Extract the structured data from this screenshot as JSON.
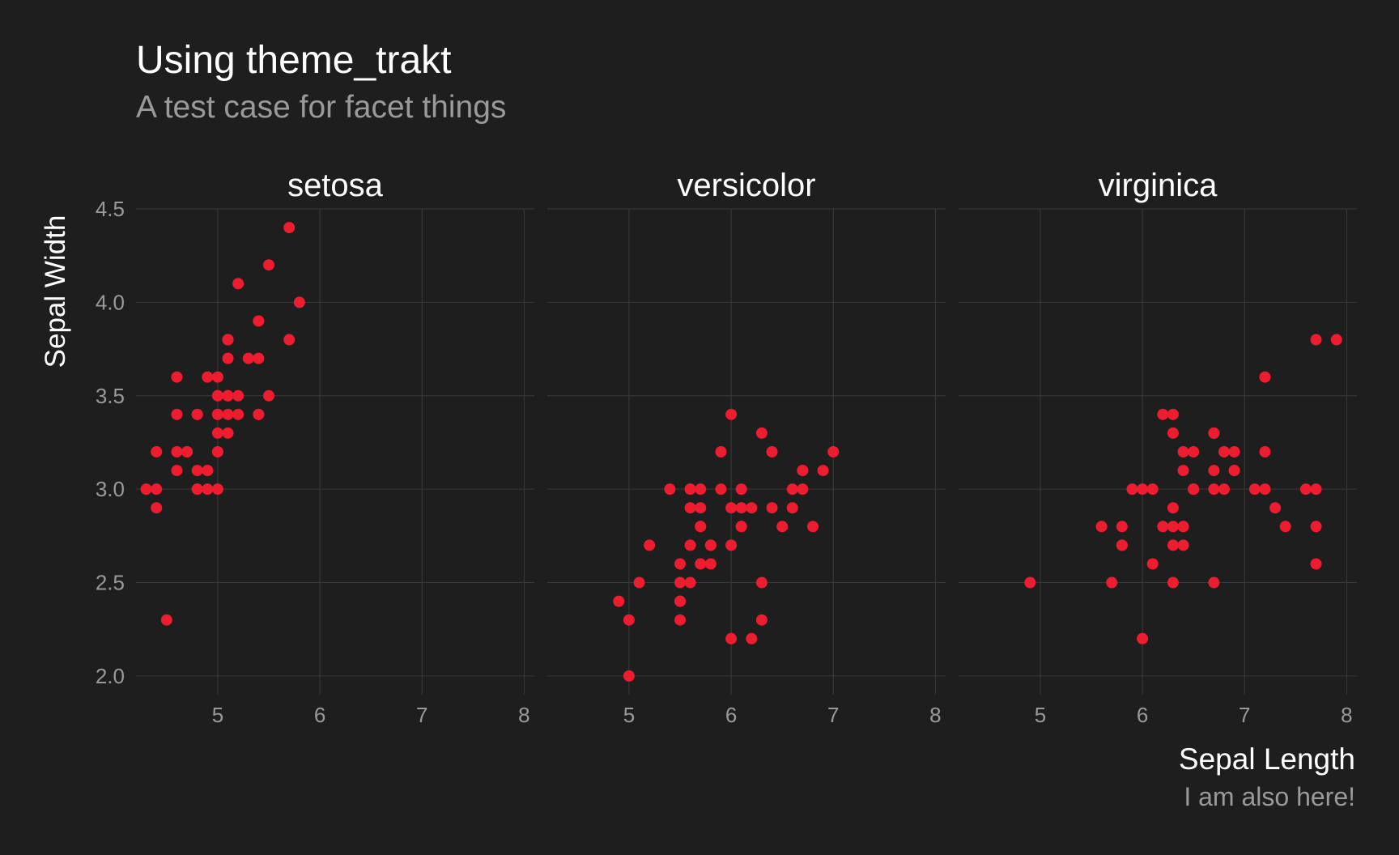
{
  "chart_data": {
    "type": "scatter",
    "title": "Using theme_trakt",
    "subtitle": "A test case for facet things",
    "xlabel": "Sepal Length",
    "ylabel": "Sepal Width",
    "caption": "I am also here!",
    "xlim": [
      4.2,
      8.1
    ],
    "ylim": [
      1.9,
      4.5
    ],
    "x_ticks": [
      "5",
      "6",
      "7",
      "8"
    ],
    "y_ticks": [
      "2.0",
      "2.5",
      "3.0",
      "3.5",
      "4.0",
      "4.5"
    ],
    "grid": true,
    "legend": "none",
    "point_color": "#ed1c2e",
    "background_color": "#1e1e1e",
    "facets": [
      {
        "label": "setosa",
        "points": [
          [
            5.1,
            3.5
          ],
          [
            4.9,
            3.0
          ],
          [
            4.7,
            3.2
          ],
          [
            4.6,
            3.1
          ],
          [
            5.0,
            3.6
          ],
          [
            5.4,
            3.9
          ],
          [
            4.6,
            3.4
          ],
          [
            5.0,
            3.4
          ],
          [
            4.4,
            2.9
          ],
          [
            4.9,
            3.1
          ],
          [
            5.4,
            3.7
          ],
          [
            4.8,
            3.4
          ],
          [
            4.8,
            3.0
          ],
          [
            4.3,
            3.0
          ],
          [
            5.8,
            4.0
          ],
          [
            5.7,
            4.4
          ],
          [
            5.4,
            3.9
          ],
          [
            5.1,
            3.5
          ],
          [
            5.7,
            3.8
          ],
          [
            5.1,
            3.8
          ],
          [
            5.4,
            3.4
          ],
          [
            5.1,
            3.7
          ],
          [
            4.6,
            3.6
          ],
          [
            5.1,
            3.3
          ],
          [
            4.8,
            3.4
          ],
          [
            5.0,
            3.0
          ],
          [
            5.0,
            3.4
          ],
          [
            5.2,
            3.5
          ],
          [
            5.2,
            3.4
          ],
          [
            4.7,
            3.2
          ],
          [
            4.8,
            3.1
          ],
          [
            5.4,
            3.4
          ],
          [
            5.2,
            4.1
          ],
          [
            5.5,
            4.2
          ],
          [
            4.9,
            3.1
          ],
          [
            5.0,
            3.2
          ],
          [
            5.5,
            3.5
          ],
          [
            4.9,
            3.6
          ],
          [
            4.4,
            3.0
          ],
          [
            5.1,
            3.4
          ],
          [
            5.0,
            3.5
          ],
          [
            4.5,
            2.3
          ],
          [
            4.4,
            3.2
          ],
          [
            5.0,
            3.5
          ],
          [
            5.1,
            3.8
          ],
          [
            4.8,
            3.0
          ],
          [
            5.1,
            3.8
          ],
          [
            4.6,
            3.2
          ],
          [
            5.3,
            3.7
          ],
          [
            5.0,
            3.3
          ]
        ]
      },
      {
        "label": "versicolor",
        "points": [
          [
            7.0,
            3.2
          ],
          [
            6.4,
            3.2
          ],
          [
            6.9,
            3.1
          ],
          [
            5.5,
            2.3
          ],
          [
            6.5,
            2.8
          ],
          [
            5.7,
            2.8
          ],
          [
            6.3,
            3.3
          ],
          [
            4.9,
            2.4
          ],
          [
            6.6,
            2.9
          ],
          [
            5.2,
            2.7
          ],
          [
            5.0,
            2.0
          ],
          [
            5.9,
            3.0
          ],
          [
            6.0,
            2.2
          ],
          [
            6.1,
            2.9
          ],
          [
            5.6,
            2.9
          ],
          [
            6.7,
            3.1
          ],
          [
            5.6,
            3.0
          ],
          [
            5.8,
            2.7
          ],
          [
            6.2,
            2.2
          ],
          [
            5.6,
            2.5
          ],
          [
            5.9,
            3.2
          ],
          [
            6.1,
            2.8
          ],
          [
            6.3,
            2.5
          ],
          [
            6.1,
            2.8
          ],
          [
            6.4,
            2.9
          ],
          [
            6.6,
            3.0
          ],
          [
            6.8,
            2.8
          ],
          [
            6.7,
            3.0
          ],
          [
            6.0,
            2.9
          ],
          [
            5.7,
            2.6
          ],
          [
            5.5,
            2.4
          ],
          [
            5.5,
            2.4
          ],
          [
            5.8,
            2.7
          ],
          [
            6.0,
            2.7
          ],
          [
            5.4,
            3.0
          ],
          [
            6.0,
            3.4
          ],
          [
            6.7,
            3.1
          ],
          [
            6.3,
            2.3
          ],
          [
            5.6,
            3.0
          ],
          [
            5.5,
            2.5
          ],
          [
            5.5,
            2.6
          ],
          [
            6.1,
            3.0
          ],
          [
            5.8,
            2.6
          ],
          [
            5.0,
            2.3
          ],
          [
            5.6,
            2.7
          ],
          [
            5.7,
            3.0
          ],
          [
            5.7,
            2.9
          ],
          [
            6.2,
            2.9
          ],
          [
            5.1,
            2.5
          ],
          [
            5.7,
            2.8
          ]
        ]
      },
      {
        "label": "virginica",
        "points": [
          [
            6.3,
            3.3
          ],
          [
            5.8,
            2.7
          ],
          [
            7.1,
            3.0
          ],
          [
            6.3,
            2.9
          ],
          [
            6.5,
            3.0
          ],
          [
            7.6,
            3.0
          ],
          [
            4.9,
            2.5
          ],
          [
            7.3,
            2.9
          ],
          [
            6.7,
            2.5
          ],
          [
            7.2,
            3.6
          ],
          [
            6.5,
            3.2
          ],
          [
            6.4,
            2.7
          ],
          [
            6.8,
            3.0
          ],
          [
            5.7,
            2.5
          ],
          [
            5.8,
            2.8
          ],
          [
            6.4,
            3.2
          ],
          [
            6.5,
            3.0
          ],
          [
            7.7,
            3.8
          ],
          [
            7.7,
            2.6
          ],
          [
            6.0,
            2.2
          ],
          [
            6.9,
            3.2
          ],
          [
            5.6,
            2.8
          ],
          [
            7.7,
            2.8
          ],
          [
            6.3,
            2.7
          ],
          [
            6.7,
            3.3
          ],
          [
            7.2,
            3.2
          ],
          [
            6.2,
            2.8
          ],
          [
            6.1,
            3.0
          ],
          [
            6.4,
            2.8
          ],
          [
            7.2,
            3.0
          ],
          [
            7.4,
            2.8
          ],
          [
            7.9,
            3.8
          ],
          [
            6.4,
            2.8
          ],
          [
            6.3,
            2.8
          ],
          [
            6.1,
            2.6
          ],
          [
            7.7,
            3.0
          ],
          [
            6.3,
            3.4
          ],
          [
            6.4,
            3.1
          ],
          [
            6.0,
            3.0
          ],
          [
            6.9,
            3.1
          ],
          [
            6.7,
            3.1
          ],
          [
            6.9,
            3.1
          ],
          [
            5.8,
            2.7
          ],
          [
            6.8,
            3.2
          ],
          [
            6.7,
            3.3
          ],
          [
            6.7,
            3.0
          ],
          [
            6.3,
            2.5
          ],
          [
            6.5,
            3.0
          ],
          [
            6.2,
            3.4
          ],
          [
            5.9,
            3.0
          ]
        ]
      }
    ]
  }
}
